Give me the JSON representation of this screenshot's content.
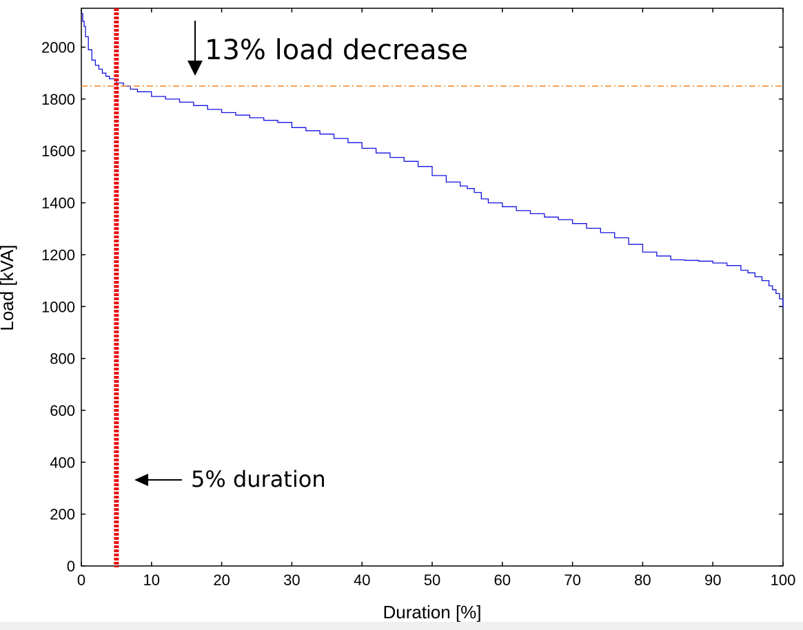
{
  "chart_data": {
    "type": "line",
    "title": "",
    "xlabel": "Duration [%]",
    "ylabel": "Load [kVA]",
    "xlim": [
      0,
      100
    ],
    "ylim": [
      0,
      2150
    ],
    "xticks": [
      0,
      10,
      20,
      30,
      40,
      50,
      60,
      70,
      80,
      90,
      100
    ],
    "yticks": [
      0,
      200,
      400,
      600,
      800,
      1000,
      1200,
      1400,
      1600,
      1800,
      2000
    ],
    "grid": false,
    "series": [
      {
        "color": "#1010e0",
        "x": [
          0,
          0.2,
          0.4,
          0.6,
          1,
          1.5,
          2,
          2.5,
          3,
          3.5,
          4,
          5,
          6,
          7,
          8,
          10,
          12,
          14,
          16,
          18,
          20,
          22,
          24,
          26,
          28,
          30,
          32,
          34,
          36,
          38,
          40,
          42,
          44,
          46,
          48,
          50,
          52,
          54,
          55,
          56,
          57,
          58,
          60,
          62,
          64,
          66,
          68,
          70,
          72,
          74,
          76,
          78,
          80,
          82,
          84,
          86,
          88,
          90,
          92,
          94,
          95,
          96,
          97,
          98,
          98.5,
          99,
          99.5,
          100
        ],
        "y": [
          2130,
          2100,
          2080,
          2040,
          1990,
          1950,
          1930,
          1915,
          1900,
          1888,
          1878,
          1862,
          1850,
          1838,
          1828,
          1810,
          1800,
          1788,
          1775,
          1760,
          1748,
          1738,
          1728,
          1718,
          1710,
          1690,
          1678,
          1665,
          1648,
          1632,
          1610,
          1592,
          1575,
          1560,
          1540,
          1505,
          1480,
          1465,
          1455,
          1440,
          1415,
          1400,
          1385,
          1370,
          1358,
          1345,
          1335,
          1320,
          1302,
          1285,
          1265,
          1240,
          1210,
          1195,
          1180,
          1178,
          1175,
          1168,
          1158,
          1140,
          1130,
          1115,
          1100,
          1080,
          1065,
          1050,
          1030,
          995
        ]
      }
    ],
    "reference_lines": [
      {
        "orientation": "horizontal",
        "value": 1850,
        "color": "#f08c30",
        "style": "dash-dot"
      },
      {
        "orientation": "vertical",
        "value": 5,
        "color": "#e81010",
        "style": "dotted-thick"
      }
    ],
    "annotations": [
      {
        "text": "13% load decrease",
        "arrow": "down"
      },
      {
        "text": "5% duration",
        "arrow": "left"
      }
    ]
  }
}
